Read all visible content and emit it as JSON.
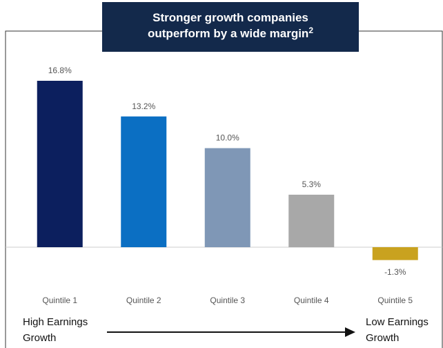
{
  "chart_data": {
    "type": "bar",
    "title": "Stronger growth companies outperform by a wide margin",
    "title_superscript": "2",
    "categories": [
      "Quintile 1",
      "Quintile 2",
      "Quintile 3",
      "Quintile 4",
      "Quintile 5"
    ],
    "values": [
      16.8,
      13.2,
      10.0,
      5.3,
      -1.3
    ],
    "value_labels": [
      "16.8%",
      "13.2%",
      "10.0%",
      "5.3%",
      "-1.3%"
    ],
    "colors": [
      "#0c1f5e",
      "#0b6fc3",
      "#7f97b6",
      "#a8a8a8",
      "#c9a21f"
    ],
    "annotations": [
      "High Earnings Growth",
      "Low Earnings Growth"
    ]
  }
}
